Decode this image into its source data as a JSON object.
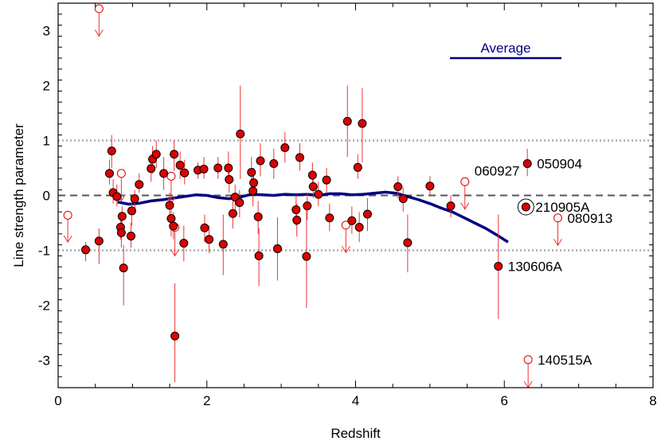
{
  "chart_data": {
    "type": "scatter",
    "xlabel": "Redshift",
    "ylabel": "Line strength parameter",
    "xlim": [
      0,
      8
    ],
    "ylim": [
      -3.5,
      3.5
    ],
    "x_ticks": [
      0,
      2,
      4,
      6,
      8
    ],
    "y_ticks": [
      -3,
      -2,
      -1,
      0,
      1,
      2,
      3
    ],
    "reference_lines": [
      {
        "y": 0,
        "style": "dashed",
        "color": "#555555"
      },
      {
        "y": 1,
        "style": "dotted",
        "color": "#aaaaaa"
      },
      {
        "y": -1,
        "style": "dotted",
        "color": "#aaaaaa"
      }
    ],
    "legend": {
      "label": "Average",
      "color": "#000080",
      "placement": "top-right"
    },
    "colors": {
      "points": "#dd0000",
      "errorbars": "#ee3333",
      "average": "#000080"
    },
    "series": [
      {
        "marker": "filled-circle",
        "points": [
          {
            "x": 0.37,
            "y": -0.99,
            "ylo": -1.2,
            "yhi": -0.85
          },
          {
            "x": 0.55,
            "y": -0.83,
            "ylo": -1.25,
            "yhi": -0.6
          },
          {
            "x": 0.69,
            "y": 0.4,
            "ylo": 0.2,
            "yhi": 0.65
          },
          {
            "x": 0.72,
            "y": 0.81,
            "ylo": 0.5,
            "yhi": 1.1
          },
          {
            "x": 0.74,
            "y": 0.05,
            "ylo": -0.15,
            "yhi": 0.3
          },
          {
            "x": 0.79,
            "y": -0.02,
            "ylo": -0.2,
            "yhi": 0.2
          },
          {
            "x": 0.84,
            "y": -0.58,
            "ylo": -0.8,
            "yhi": -0.35
          },
          {
            "x": 0.85,
            "y": -0.68,
            "ylo": -0.95,
            "yhi": -0.45
          },
          {
            "x": 0.86,
            "y": -0.38,
            "ylo": -0.6,
            "yhi": -0.2
          },
          {
            "x": 0.88,
            "y": -1.32,
            "ylo": -2.0,
            "yhi": -0.9
          },
          {
            "x": 0.99,
            "y": -0.28,
            "ylo": -0.55,
            "yhi": 0.0
          },
          {
            "x": 0.98,
            "y": -0.74,
            "ylo": -0.95,
            "yhi": -0.5
          },
          {
            "x": 1.03,
            "y": -0.06,
            "ylo": -0.25,
            "yhi": 0.1
          },
          {
            "x": 1.09,
            "y": 0.2,
            "ylo": 0.05,
            "yhi": 0.4
          },
          {
            "x": 1.25,
            "y": 0.49,
            "ylo": 0.25,
            "yhi": 0.75
          },
          {
            "x": 1.27,
            "y": 0.66,
            "ylo": 0.4,
            "yhi": 0.9
          },
          {
            "x": 1.32,
            "y": 0.75,
            "ylo": 0.5,
            "yhi": 1.0
          },
          {
            "x": 1.42,
            "y": 0.4,
            "ylo": 0.1,
            "yhi": 0.7
          },
          {
            "x": 1.5,
            "y": -0.18,
            "ylo": -0.4,
            "yhi": 0.05
          },
          {
            "x": 1.52,
            "y": -0.42,
            "ylo": -0.75,
            "yhi": -0.15
          },
          {
            "x": 1.55,
            "y": -0.56,
            "ylo": -0.8,
            "yhi": -0.3
          },
          {
            "x": 1.56,
            "y": 0.75,
            "ylo": 0.45,
            "yhi": 1.0
          },
          {
            "x": 1.57,
            "y": -2.56,
            "ylo": -3.4,
            "yhi": -1.6
          },
          {
            "x": 1.64,
            "y": 0.55,
            "ylo": 0.3,
            "yhi": 0.8
          },
          {
            "x": 1.7,
            "y": 0.41,
            "ylo": 0.2,
            "yhi": 0.65
          },
          {
            "x": 1.69,
            "y": -0.87,
            "ylo": -1.2,
            "yhi": -0.55
          },
          {
            "x": 1.88,
            "y": 0.46,
            "ylo": 0.3,
            "yhi": 0.6
          },
          {
            "x": 1.96,
            "y": 0.48,
            "ylo": 0.3,
            "yhi": 0.7
          },
          {
            "x": 1.97,
            "y": -0.59,
            "ylo": -0.85,
            "yhi": -0.35
          },
          {
            "x": 2.03,
            "y": -0.8,
            "ylo": -1.05,
            "yhi": -0.55
          },
          {
            "x": 2.15,
            "y": 0.5,
            "ylo": 0.3,
            "yhi": 0.7
          },
          {
            "x": 2.22,
            "y": -0.89,
            "ylo": -1.45,
            "yhi": -0.35
          },
          {
            "x": 2.29,
            "y": 0.5,
            "ylo": 0.25,
            "yhi": 0.8
          },
          {
            "x": 2.3,
            "y": 0.29,
            "ylo": 0.05,
            "yhi": 0.55
          },
          {
            "x": 2.35,
            "y": -0.33,
            "ylo": -0.6,
            "yhi": -0.1
          },
          {
            "x": 2.38,
            "y": -0.03,
            "ylo": -0.3,
            "yhi": 0.2
          },
          {
            "x": 2.44,
            "y": -0.13,
            "ylo": -0.4,
            "yhi": 0.1
          },
          {
            "x": 2.45,
            "y": 1.12,
            "ylo": 0.3,
            "yhi": 2.0
          },
          {
            "x": 2.6,
            "y": 0.42,
            "ylo": 0.15,
            "yhi": 0.7
          },
          {
            "x": 2.62,
            "y": 0.08,
            "ylo": -0.2,
            "yhi": 0.35
          },
          {
            "x": 2.63,
            "y": 0.23,
            "ylo": 0.0,
            "yhi": 0.5
          },
          {
            "x": 2.69,
            "y": -0.39,
            "ylo": -0.7,
            "yhi": -0.1
          },
          {
            "x": 2.7,
            "y": -1.1,
            "ylo": -1.65,
            "yhi": -0.6
          },
          {
            "x": 2.72,
            "y": 0.63,
            "ylo": 0.35,
            "yhi": 0.95
          },
          {
            "x": 2.9,
            "y": 0.58,
            "ylo": 0.3,
            "yhi": 0.85
          },
          {
            "x": 2.95,
            "y": -0.97,
            "ylo": -1.55,
            "yhi": -0.4
          },
          {
            "x": 3.05,
            "y": 0.87,
            "ylo": 0.6,
            "yhi": 1.15
          },
          {
            "x": 3.2,
            "y": -0.26,
            "ylo": -0.55,
            "yhi": 0.0
          },
          {
            "x": 3.21,
            "y": -0.45,
            "ylo": -0.75,
            "yhi": -0.15
          },
          {
            "x": 3.25,
            "y": 0.69,
            "ylo": 0.45,
            "yhi": 0.95
          },
          {
            "x": 3.34,
            "y": -1.11,
            "ylo": -2.05,
            "yhi": -0.2
          },
          {
            "x": 3.35,
            "y": -0.19,
            "ylo": -0.45,
            "yhi": 0.05
          },
          {
            "x": 3.42,
            "y": 0.37,
            "ylo": 0.15,
            "yhi": 0.6
          },
          {
            "x": 3.43,
            "y": 0.16,
            "ylo": -0.05,
            "yhi": 0.35
          },
          {
            "x": 3.5,
            "y": 0.02,
            "ylo": -0.2,
            "yhi": 0.25
          },
          {
            "x": 3.61,
            "y": 0.28,
            "ylo": 0.05,
            "yhi": 0.5
          },
          {
            "x": 3.65,
            "y": -0.41,
            "ylo": -0.65,
            "yhi": -0.15
          },
          {
            "x": 3.89,
            "y": 1.35,
            "ylo": 0.7,
            "yhi": 2.0
          },
          {
            "x": 3.95,
            "y": -0.46,
            "ylo": -0.7,
            "yhi": -0.2
          },
          {
            "x": 4.03,
            "y": 0.51,
            "ylo": 0.3,
            "yhi": 0.75
          },
          {
            "x": 4.05,
            "y": -0.58,
            "ylo": -0.85,
            "yhi": -0.3
          },
          {
            "x": 4.09,
            "y": 1.31,
            "ylo": 0.6,
            "yhi": 1.95
          },
          {
            "x": 4.16,
            "y": -0.34,
            "ylo": -0.65,
            "yhi": -0.05
          },
          {
            "x": 4.57,
            "y": 0.16,
            "ylo": -0.05,
            "yhi": 0.35
          },
          {
            "x": 4.64,
            "y": -0.06,
            "ylo": -0.3,
            "yhi": 0.15
          },
          {
            "x": 4.7,
            "y": -0.86,
            "ylo": -1.4,
            "yhi": -0.35
          },
          {
            "x": 5.0,
            "y": 0.17,
            "ylo": 0.0,
            "yhi": 0.35
          },
          {
            "x": 5.28,
            "y": -0.19,
            "ylo": -0.4,
            "yhi": 0.0
          },
          {
            "x": 5.92,
            "y": -1.29,
            "ylo": -2.25,
            "yhi": -0.35
          },
          {
            "x": 6.31,
            "y": 0.58,
            "ylo": 0.35,
            "yhi": 0.85
          },
          {
            "x": 6.29,
            "y": -0.21,
            "ylo": -0.25,
            "yhi": -0.17
          }
        ]
      },
      {
        "marker": "open-circle-upper-limit",
        "points": [
          {
            "x": 0.13,
            "y": -0.36,
            "to": -0.85
          },
          {
            "x": 0.55,
            "y": 3.4,
            "to": 2.9
          },
          {
            "x": 0.85,
            "y": 0.4,
            "to": -0.1
          },
          {
            "x": 1.52,
            "y": 0.35,
            "to": -0.15
          },
          {
            "x": 1.57,
            "y": -0.58,
            "to": -1.1
          },
          {
            "x": 3.87,
            "y": -0.54,
            "to": -1.04
          },
          {
            "x": 5.47,
            "y": 0.25,
            "to": -0.25
          },
          {
            "x": 6.72,
            "y": -0.41,
            "to": -0.91
          },
          {
            "x": 6.32,
            "y": -2.99,
            "to": -3.5
          }
        ]
      },
      {
        "name": "Average",
        "type": "line",
        "x": [
          0.8,
          0.95,
          1.1,
          1.25,
          1.4,
          1.55,
          1.7,
          1.85,
          2.0,
          2.15,
          2.3,
          2.45,
          2.6,
          2.75,
          2.9,
          3.05,
          3.2,
          3.35,
          3.5,
          3.65,
          3.8,
          3.95,
          4.1,
          4.25,
          4.4,
          4.55,
          4.7,
          4.85,
          5.0,
          5.15,
          5.3,
          5.45,
          5.6,
          5.75,
          5.9,
          6.05
        ],
        "y": [
          -0.12,
          -0.16,
          -0.14,
          -0.1,
          -0.08,
          -0.05,
          -0.02,
          0.01,
          0.0,
          -0.04,
          -0.06,
          -0.03,
          0.02,
          0.01,
          0.0,
          0.02,
          0.01,
          0.02,
          0.0,
          0.03,
          0.03,
          0.01,
          0.02,
          0.04,
          0.06,
          0.04,
          -0.02,
          -0.08,
          -0.15,
          -0.23,
          -0.3,
          -0.4,
          -0.5,
          -0.6,
          -0.72,
          -0.85
        ]
      }
    ],
    "annotations": [
      {
        "text": "050904",
        "x": 6.31,
        "y": 0.58
      },
      {
        "text": "060927",
        "x": 5.47,
        "y": 0.25
      },
      {
        "text": "210905A",
        "x": 6.29,
        "y": -0.21
      },
      {
        "text": "080913",
        "x": 6.72,
        "y": -0.41
      },
      {
        "text": "130606A",
        "x": 5.92,
        "y": -1.29
      },
      {
        "text": "140515A",
        "x": 6.32,
        "y": -2.99
      }
    ]
  }
}
